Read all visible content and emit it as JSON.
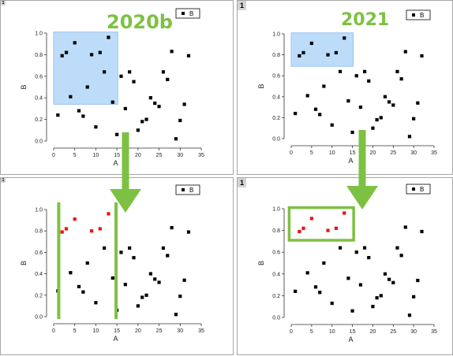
{
  "colors": {
    "accent_green": "#7dc142",
    "selection_fill": "#bcdcfa",
    "selection_stroke": "#9cc4ee",
    "point_default": "#000000",
    "point_selected": "#ee1111"
  },
  "labels": {
    "version_left": "2020b",
    "version_right": "2021"
  },
  "panels": [
    {
      "id": "top-left",
      "badge": "1",
      "style": "v2020"
    },
    {
      "id": "top-right",
      "badge": "1",
      "style": "v2021"
    },
    {
      "id": "bottom-left",
      "badge": "1",
      "style": "v2020"
    },
    {
      "id": "bottom-right",
      "badge": "1",
      "style": "v2021"
    }
  ],
  "chart_data": {
    "type": "scatter",
    "xlabel": "A",
    "ylabel": "B",
    "xlim": [
      0,
      35
    ],
    "ylim": [
      0,
      1.0
    ],
    "xticks": [
      "0",
      "5",
      "10",
      "15",
      "20",
      "25",
      "30",
      "35"
    ],
    "yticks": [
      "0.0",
      "0.2",
      "0.4",
      "0.6",
      "0.8",
      "1.0"
    ],
    "legend": "B",
    "legend_position": "top-right",
    "grid": false,
    "series": [
      {
        "name": "B",
        "x": [
          1,
          2,
          3,
          4,
          5,
          6,
          7,
          8,
          9,
          10,
          11,
          12,
          13,
          14,
          15,
          16,
          17,
          18,
          19,
          20,
          21,
          22,
          23,
          24,
          25,
          26,
          27,
          28,
          29,
          30,
          31,
          32
        ],
        "y": [
          0.24,
          0.79,
          0.82,
          0.41,
          0.91,
          0.28,
          0.23,
          0.5,
          0.8,
          0.13,
          0.82,
          0.64,
          0.96,
          0.36,
          0.06,
          0.6,
          0.3,
          0.64,
          0.55,
          0.1,
          0.18,
          0.2,
          0.4,
          0.35,
          0.32,
          0.64,
          0.57,
          0.83,
          0.02,
          0.19,
          0.34,
          0.79
        ],
        "selected_indices": [
          1,
          2,
          4,
          8,
          10,
          12
        ]
      }
    ]
  }
}
